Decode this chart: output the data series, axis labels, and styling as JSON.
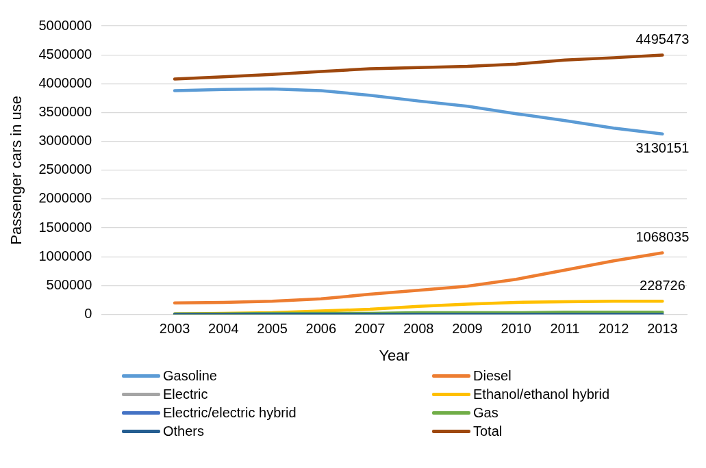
{
  "chart_data": {
    "type": "line",
    "xlabel": "Year",
    "ylabel": "Passenger cars in use",
    "categories": [
      null,
      "2003",
      "2004",
      "2005",
      "2006",
      "2007",
      "2008",
      "2009",
      "2010",
      "2011",
      "2012",
      "2013"
    ],
    "ylim": [
      0,
      5000000
    ],
    "yticks": [
      0,
      500000,
      1000000,
      1500000,
      2000000,
      2500000,
      3000000,
      3500000,
      4000000,
      4500000,
      5000000
    ],
    "grid": "y",
    "legend": "bottom",
    "marker": "none",
    "line_style": "solid",
    "series": [
      {
        "name": "Gasoline",
        "color": "#5b9bd5",
        "values": [
          null,
          3880000,
          3900000,
          3910000,
          3880000,
          3800000,
          3700000,
          3610000,
          3480000,
          3360000,
          3230000,
          3130151
        ],
        "value_labels": [
          null,
          null,
          null,
          null,
          null,
          null,
          null,
          null,
          null,
          null,
          null,
          "3130151"
        ]
      },
      {
        "name": "Diesel",
        "color": "#ed7d31",
        "values": [
          null,
          200000,
          210000,
          230000,
          270000,
          350000,
          420000,
          490000,
          610000,
          770000,
          930000,
          1068035
        ],
        "value_labels": [
          null,
          null,
          null,
          null,
          null,
          null,
          null,
          null,
          null,
          null,
          null,
          "1068035"
        ]
      },
      {
        "name": "Electric",
        "color": "#a5a5a5",
        "values": [
          null,
          null,
          null,
          null,
          null,
          null,
          null,
          null,
          null,
          null,
          null,
          null
        ]
      },
      {
        "name": "Ethanol/ethanol hybrid",
        "color": "#ffc000",
        "values": [
          null,
          10000,
          20000,
          30000,
          60000,
          90000,
          140000,
          180000,
          210000,
          220000,
          230000,
          228726
        ],
        "value_labels": [
          null,
          null,
          null,
          null,
          null,
          null,
          null,
          null,
          null,
          null,
          null,
          "228726"
        ]
      },
      {
        "name": "Electric/electric hybrid",
        "color": "#4472c4",
        "values": [
          null,
          null,
          null,
          null,
          null,
          null,
          null,
          null,
          null,
          null,
          null,
          null
        ]
      },
      {
        "name": "Gas",
        "color": "#70ad47",
        "values": [
          null,
          10000,
          10000,
          20000,
          20000,
          20000,
          30000,
          30000,
          30000,
          40000,
          40000,
          40000
        ]
      },
      {
        "name": "Others",
        "color": "#255e91",
        "values": [
          null,
          0,
          0,
          0,
          0,
          0,
          0,
          0,
          0,
          0,
          0,
          0
        ]
      },
      {
        "name": "Total",
        "color": "#9e480e",
        "values": [
          null,
          4080000,
          4120000,
          4160000,
          4210000,
          4260000,
          4280000,
          4300000,
          4340000,
          4410000,
          4450000,
          4495473
        ],
        "value_labels": [
          null,
          null,
          null,
          null,
          null,
          null,
          null,
          null,
          null,
          null,
          null,
          "4495473"
        ]
      }
    ]
  }
}
